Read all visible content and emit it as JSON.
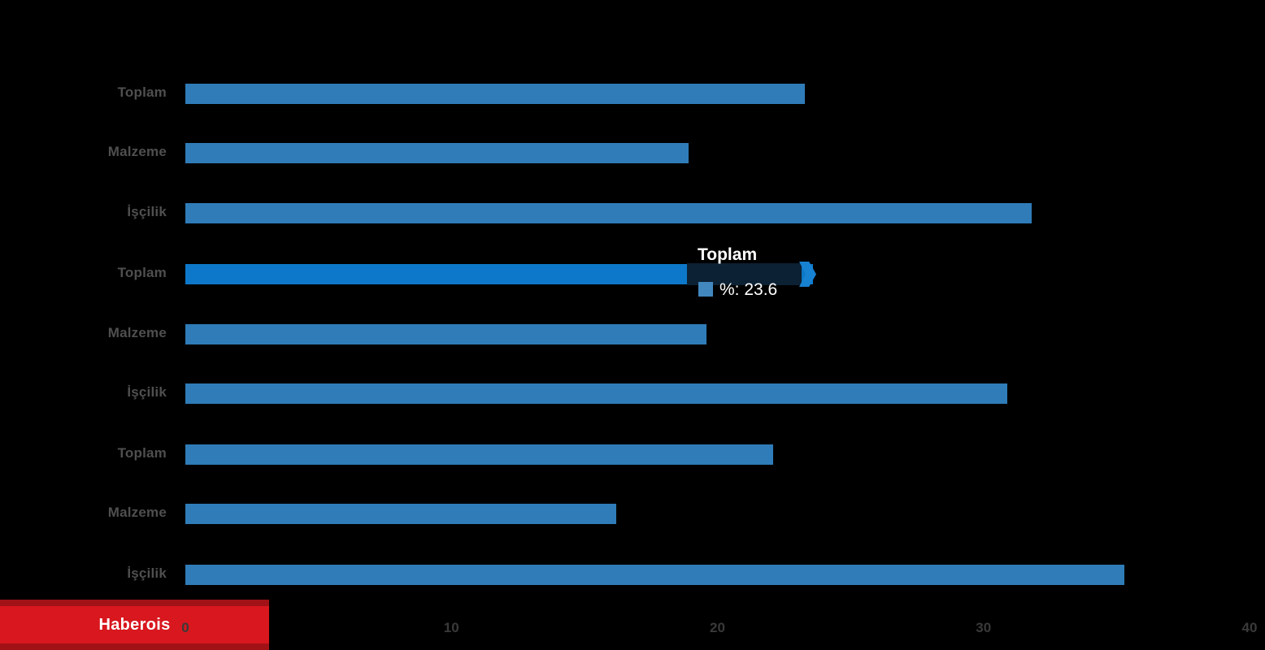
{
  "brand": {
    "label": "Haberois",
    "bg_color": "#D8171E",
    "edge_color": "#A11217"
  },
  "tooltip": {
    "title": "Toplam",
    "value_text": "%: 23.6",
    "swatch_color": "#4287BE",
    "band_color": "#0C2134",
    "arrow_color": "#1781D2"
  },
  "chart_data": {
    "type": "bar",
    "orientation": "horizontal",
    "title": "",
    "xlabel": "",
    "ylabel": "",
    "categories": [
      "Toplam",
      "Malzeme",
      "İşçilik",
      "Toplam",
      "Malzeme",
      "İşçilik",
      "Toplam",
      "Malzeme",
      "İşçilik"
    ],
    "values": [
      23.3,
      18.9,
      31.8,
      23.6,
      19.6,
      30.9,
      22.1,
      16.2,
      35.3
    ],
    "highlighted_index": 3,
    "highlighted_value": 23.6,
    "xlim": [
      0,
      40
    ],
    "x_ticks": [
      0,
      10,
      20,
      30,
      40
    ],
    "bar_color": "#2F7CB8",
    "highlight_color": "#0D78C9",
    "background_color": "#000000",
    "label_color": "#4F4F4F",
    "tick_color": "#3A3A3A",
    "grid": false,
    "legend_position": "none"
  }
}
